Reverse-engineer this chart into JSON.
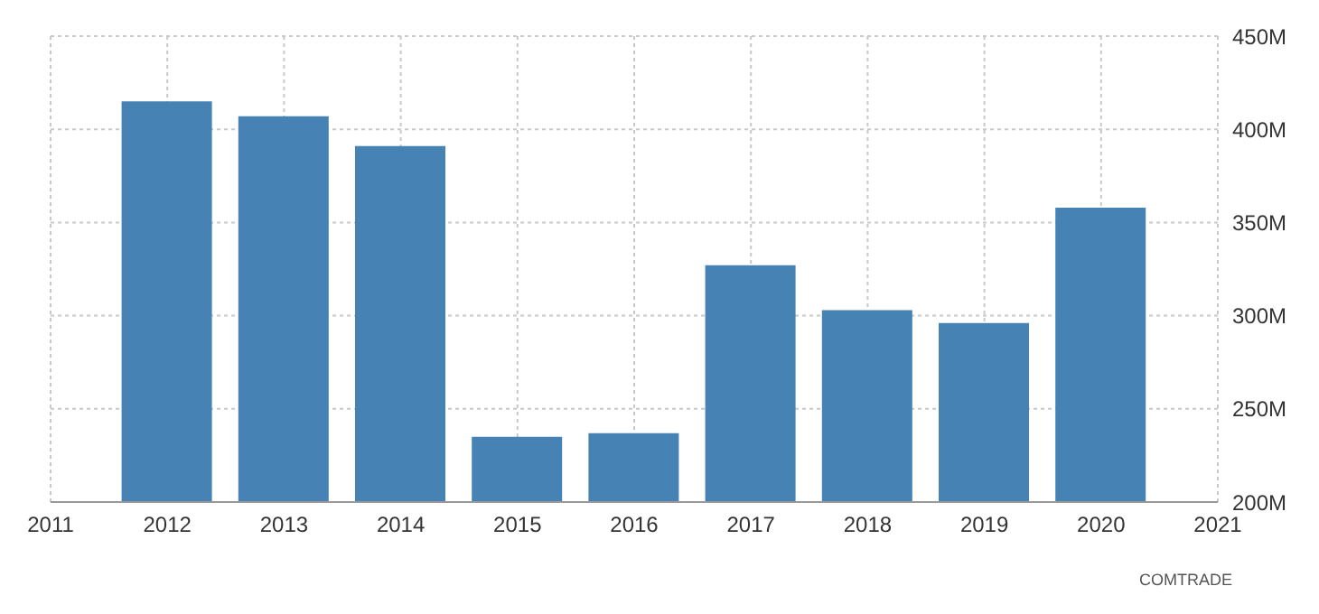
{
  "chart_data": {
    "type": "bar",
    "x": [
      2012,
      2013,
      2014,
      2015,
      2016,
      2017,
      2018,
      2019,
      2020
    ],
    "values": [
      415000000,
      407000000,
      391000000,
      235000000,
      237000000,
      327000000,
      303000000,
      296000000,
      358000000
    ],
    "color": "#4682b4",
    "xlim": [
      2011,
      2021
    ],
    "xticks": [
      2011,
      2012,
      2013,
      2014,
      2015,
      2016,
      2017,
      2018,
      2019,
      2020,
      2021
    ],
    "ylim": [
      200000000,
      450000000
    ],
    "yticks": [
      {
        "value": 200000000,
        "label": "200M"
      },
      {
        "value": 250000000,
        "label": "250M"
      },
      {
        "value": 300000000,
        "label": "300M"
      },
      {
        "value": 350000000,
        "label": "350M"
      },
      {
        "value": 400000000,
        "label": "400M"
      },
      {
        "value": 450000000,
        "label": "450M"
      }
    ],
    "grid": true,
    "annotations": [
      "COMTRADE"
    ]
  }
}
